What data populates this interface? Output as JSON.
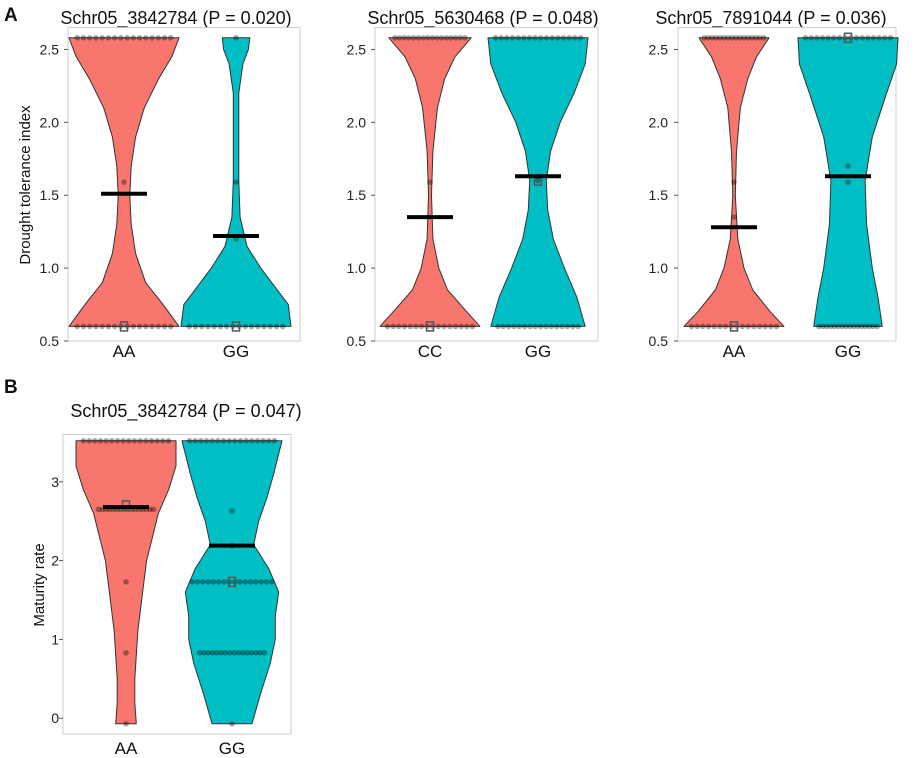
{
  "panel_labels": {
    "a": "A",
    "b": "B"
  },
  "colors": {
    "group1": "#F8766D",
    "group2": "#00BFC4",
    "mean_bar": "#000000",
    "frame": "#cccccc",
    "outline": "#333333"
  },
  "chart_data": [
    {
      "type": "violin",
      "panel": "A",
      "title": "Schr05_3842784 (P = 0.020)",
      "xlabel": "",
      "ylabel": "Drought tolerance index",
      "ylim": [
        0.5,
        2.65
      ],
      "yticks": [
        0.5,
        1.0,
        1.5,
        2.0,
        2.5
      ],
      "ytick_labels": [
        "0.5",
        "1.0",
        "1.5",
        "2.0",
        "2.5"
      ],
      "categories": [
        "AA",
        "GG"
      ],
      "series": [
        {
          "name": "AA",
          "mean": 1.51,
          "median": 0.6,
          "points": [
            0.6,
            1.59,
            2.58
          ],
          "density": [
            [
              0.6,
              0.38
            ],
            [
              0.75,
              0.27
            ],
            [
              0.9,
              0.15
            ],
            [
              1.1,
              0.08
            ],
            [
              1.3,
              0.05
            ],
            [
              1.5,
              0.04
            ],
            [
              1.7,
              0.05
            ],
            [
              1.9,
              0.08
            ],
            [
              2.1,
              0.14
            ],
            [
              2.3,
              0.24
            ],
            [
              2.45,
              0.33
            ],
            [
              2.58,
              0.38
            ]
          ]
        },
        {
          "name": "GG",
          "mean": 1.22,
          "median": 0.6,
          "points": [
            0.6,
            1.2,
            1.59,
            2.58
          ],
          "density": [
            [
              0.6,
              0.4
            ],
            [
              0.75,
              0.38
            ],
            [
              0.9,
              0.26
            ],
            [
              1.0,
              0.18
            ],
            [
              1.15,
              0.08
            ],
            [
              1.35,
              0.03
            ],
            [
              1.6,
              0.02
            ],
            [
              1.9,
              0.02
            ],
            [
              2.2,
              0.02
            ],
            [
              2.4,
              0.05
            ],
            [
              2.5,
              0.09
            ],
            [
              2.58,
              0.1
            ]
          ]
        }
      ]
    },
    {
      "type": "violin",
      "panel": "A",
      "title": "Schr05_5630468 (P = 0.048)",
      "xlabel": "",
      "ylabel": "",
      "ylim": [
        0.5,
        2.65
      ],
      "yticks": [
        0.5,
        1.0,
        1.5,
        2.0,
        2.5
      ],
      "ytick_labels": [
        "0.5",
        "1.0",
        "1.5",
        "2.0",
        "2.5"
      ],
      "categories": [
        "CC",
        "GG"
      ],
      "series": [
        {
          "name": "CC",
          "mean": 1.35,
          "median": 0.6,
          "points": [
            0.6,
            1.59,
            2.58
          ],
          "density": [
            [
              0.6,
              0.34
            ],
            [
              0.7,
              0.25
            ],
            [
              0.85,
              0.12
            ],
            [
              1.0,
              0.06
            ],
            [
              1.2,
              0.02
            ],
            [
              1.5,
              0.01
            ],
            [
              1.8,
              0.02
            ],
            [
              2.1,
              0.05
            ],
            [
              2.3,
              0.1
            ],
            [
              2.45,
              0.17
            ],
            [
              2.58,
              0.28
            ]
          ]
        },
        {
          "name": "GG",
          "mean": 1.63,
          "median": 1.6,
          "points": [
            0.6,
            1.6,
            1.63,
            2.58
          ],
          "density": [
            [
              0.6,
              0.34
            ],
            [
              0.8,
              0.28
            ],
            [
              1.0,
              0.19
            ],
            [
              1.2,
              0.11
            ],
            [
              1.4,
              0.07
            ],
            [
              1.6,
              0.06
            ],
            [
              1.8,
              0.09
            ],
            [
              2.0,
              0.16
            ],
            [
              2.2,
              0.26
            ],
            [
              2.4,
              0.34
            ],
            [
              2.58,
              0.36
            ]
          ]
        }
      ]
    },
    {
      "type": "violin",
      "panel": "A",
      "title": "Schr05_7891044 (P = 0.036)",
      "xlabel": "",
      "ylabel": "",
      "ylim": [
        0.5,
        2.65
      ],
      "yticks": [
        0.5,
        1.0,
        1.5,
        2.0,
        2.5
      ],
      "ytick_labels": [
        "0.5",
        "1.0",
        "1.5",
        "2.0",
        "2.5"
      ],
      "categories": [
        "AA",
        "GG"
      ],
      "series": [
        {
          "name": "AA",
          "mean": 1.28,
          "median": 0.6,
          "points": [
            0.6,
            1.35,
            1.59,
            2.58
          ],
          "density": [
            [
              0.6,
              0.4
            ],
            [
              0.7,
              0.29
            ],
            [
              0.85,
              0.15
            ],
            [
              1.0,
              0.08
            ],
            [
              1.2,
              0.03
            ],
            [
              1.5,
              0.01
            ],
            [
              1.8,
              0.02
            ],
            [
              2.1,
              0.05
            ],
            [
              2.3,
              0.11
            ],
            [
              2.45,
              0.18
            ],
            [
              2.58,
              0.28
            ]
          ]
        },
        {
          "name": "GG",
          "mean": 1.63,
          "median": 2.58,
          "points": [
            0.6,
            1.59,
            1.7,
            2.58
          ],
          "density": [
            [
              0.6,
              0.24
            ],
            [
              0.8,
              0.21
            ],
            [
              1.0,
              0.17
            ],
            [
              1.3,
              0.13
            ],
            [
              1.6,
              0.12
            ],
            [
              1.9,
              0.17
            ],
            [
              2.2,
              0.27
            ],
            [
              2.4,
              0.34
            ],
            [
              2.58,
              0.35
            ]
          ]
        }
      ]
    },
    {
      "type": "violin",
      "panel": "B",
      "title": "Schr05_3842784 (P = 0.047)",
      "xlabel": "",
      "ylabel": "Maturity rate",
      "ylim": [
        -0.2,
        3.6
      ],
      "yticks": [
        0,
        1,
        2,
        3
      ],
      "ytick_labels": [
        "0",
        "1",
        "2",
        "3"
      ],
      "categories": [
        "AA",
        "GG"
      ],
      "series": [
        {
          "name": "AA",
          "mean": 2.68,
          "median": 2.7,
          "points": [
            -0.07,
            0.83,
            1.73,
            2.65,
            3.52
          ],
          "density": [
            [
              -0.07,
              0.07
            ],
            [
              0.2,
              0.06
            ],
            [
              0.5,
              0.06
            ],
            [
              0.8,
              0.07
            ],
            [
              1.1,
              0.08
            ],
            [
              1.4,
              0.1
            ],
            [
              1.7,
              0.12
            ],
            [
              2.0,
              0.14
            ],
            [
              2.3,
              0.18
            ],
            [
              2.6,
              0.22
            ],
            [
              2.9,
              0.29
            ],
            [
              3.2,
              0.34
            ],
            [
              3.52,
              0.34
            ]
          ]
        },
        {
          "name": "GG",
          "mean": 2.19,
          "median": 1.73,
          "points": [
            -0.07,
            0.83,
            1.73,
            2.19,
            2.63,
            3.52
          ],
          "density": [
            [
              -0.07,
              0.12
            ],
            [
              0.3,
              0.17
            ],
            [
              0.7,
              0.23
            ],
            [
              1.0,
              0.26
            ],
            [
              1.3,
              0.26
            ],
            [
              1.6,
              0.28
            ],
            [
              1.9,
              0.22
            ],
            [
              2.2,
              0.13
            ],
            [
              2.5,
              0.16
            ],
            [
              2.8,
              0.21
            ],
            [
              3.1,
              0.25
            ],
            [
              3.52,
              0.3
            ]
          ]
        }
      ]
    }
  ]
}
